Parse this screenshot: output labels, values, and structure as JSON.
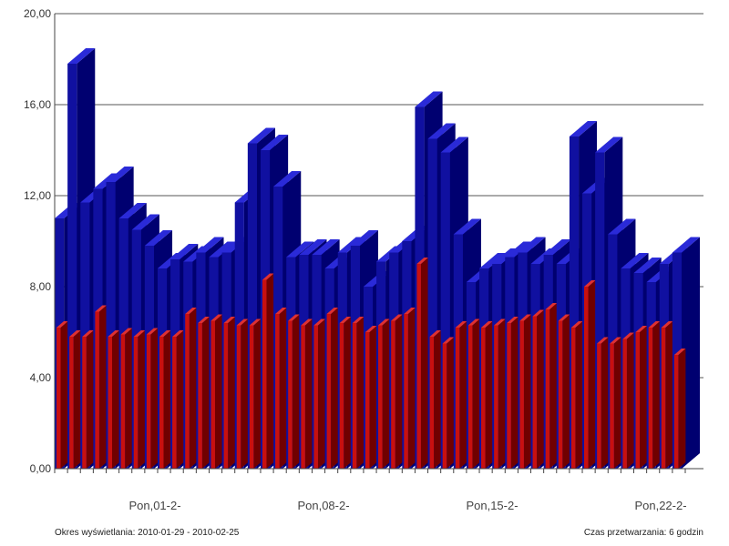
{
  "chart_data": {
    "type": "bar",
    "style": "3d-overlapping-bars",
    "ylim": [
      0,
      20
    ],
    "yticks": [
      "0,00",
      "4,00",
      "8,00",
      "12,00",
      "16,00",
      "20,00"
    ],
    "xtick_labels": [
      "Pon,01-2-",
      "Pon,08-2-",
      "Pon,15-2-",
      "Pon,22-2-"
    ],
    "footer_left": "Okres wyświetlania: 2010-01-29 - 2010-02-25",
    "footer_right": "Czas przetwarzania: 6 godzin",
    "grid": true,
    "colors": {
      "back_series": "#1010a0",
      "back_side": "#000070",
      "front_series": "#c81010",
      "front_side": "#700000"
    },
    "series": [
      {
        "values": [
          11.0,
          17.8,
          11.7,
          12.3,
          12.6,
          11.0,
          10.5,
          9.8,
          8.8,
          9.2,
          9.1,
          9.5,
          9.3,
          9.5,
          11.7,
          14.3,
          14.0,
          12.4,
          9.3,
          9.4,
          9.4,
          8.8,
          9.5,
          9.8,
          8.0,
          9.1,
          9.5,
          10.0,
          15.9,
          14.5,
          13.9,
          10.3,
          8.2,
          8.8,
          9.0,
          9.3,
          9.5,
          9.0,
          9.4,
          9.0,
          14.6,
          12.1,
          13.9,
          10.3,
          8.8,
          8.6,
          8.2,
          9.0,
          9.5
        ]
      },
      {
        "values": [
          6.2,
          5.8,
          5.8,
          6.9,
          5.8,
          5.9,
          5.8,
          5.9,
          5.8,
          5.8,
          6.8,
          6.4,
          6.5,
          6.4,
          6.3,
          6.3,
          8.3,
          6.8,
          6.5,
          6.3,
          6.3,
          6.8,
          6.4,
          6.4,
          6.0,
          6.3,
          6.5,
          6.8,
          9.0,
          5.8,
          5.5,
          6.2,
          6.3,
          6.2,
          6.3,
          6.4,
          6.5,
          6.7,
          7.0,
          6.5,
          6.2,
          8.0,
          5.5,
          5.5,
          5.7,
          6.0,
          6.2,
          6.2,
          5.0
        ]
      }
    ]
  }
}
